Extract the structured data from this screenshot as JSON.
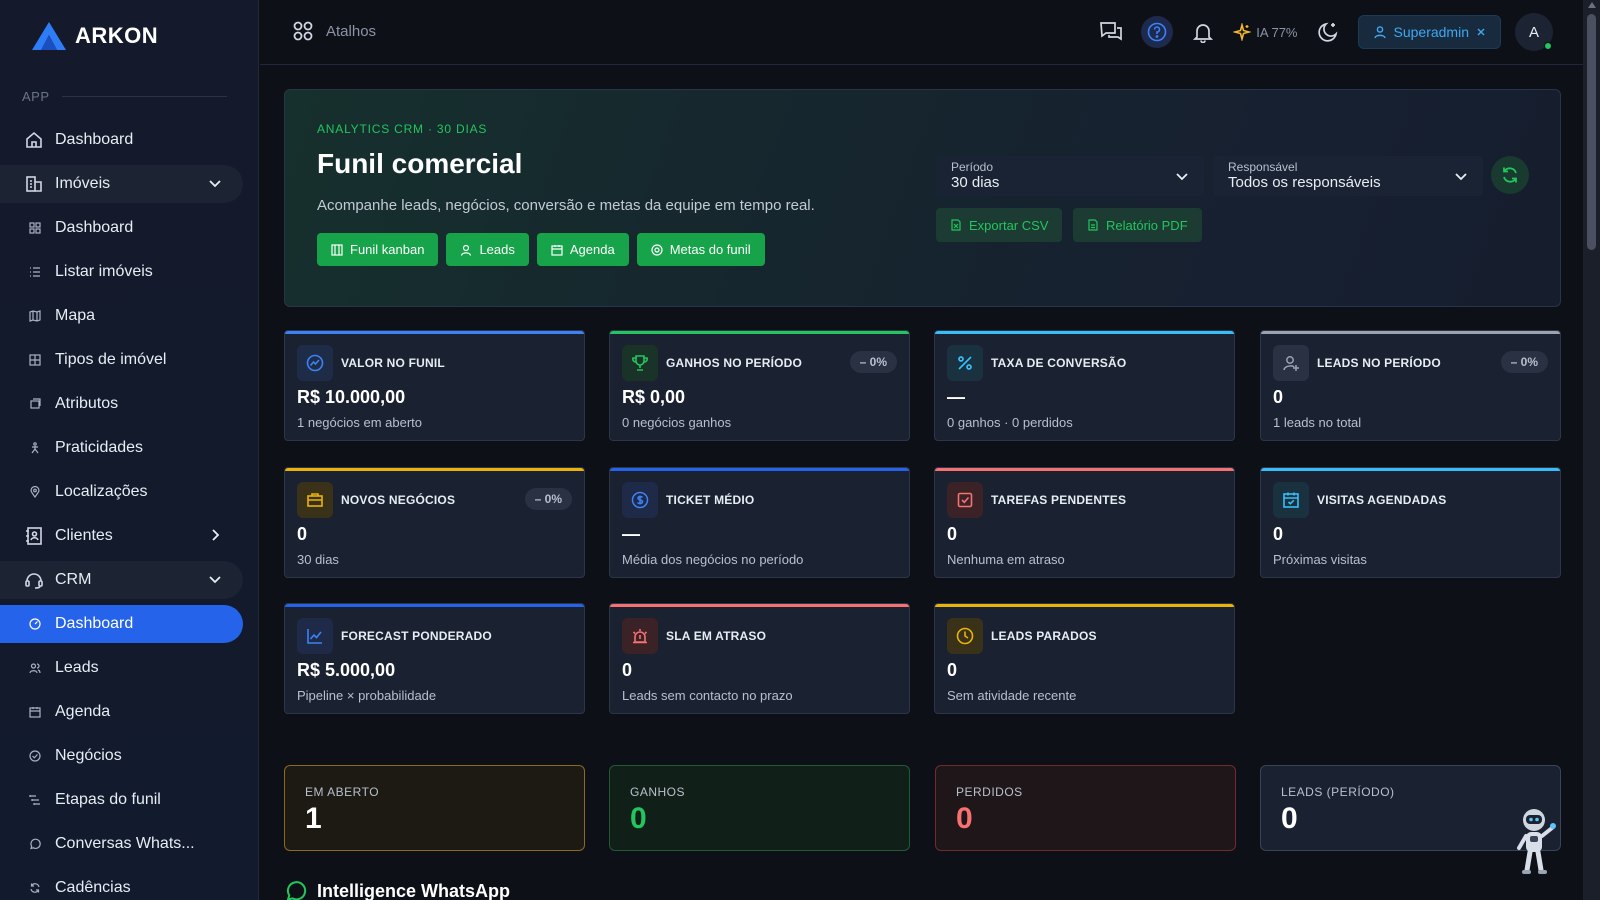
{
  "app": {
    "name": "ARKON"
  },
  "sidebar": {
    "section_label": "APP",
    "items": [
      {
        "label": "Dashboard",
        "icon": "home-icon"
      },
      {
        "label": "Imóveis",
        "icon": "building-icon"
      },
      {
        "label": "Dashboard",
        "icon": "grid-icon"
      },
      {
        "label": "Listar imóveis",
        "icon": "list-icon"
      },
      {
        "label": "Mapa",
        "icon": "map-icon"
      },
      {
        "label": "Tipos de imóvel",
        "icon": "grid-icon"
      },
      {
        "label": "Atributos",
        "icon": "tag-icon"
      },
      {
        "label": "Praticidades",
        "icon": "person-icon"
      },
      {
        "label": "Localizações",
        "icon": "pin-icon"
      },
      {
        "label": "Clientes",
        "icon": "contacts-icon"
      },
      {
        "label": "CRM",
        "icon": "headset-icon"
      },
      {
        "label": "Dashboard",
        "icon": "gauge-icon"
      },
      {
        "label": "Leads",
        "icon": "users-icon"
      },
      {
        "label": "Agenda",
        "icon": "calendar-icon"
      },
      {
        "label": "Negócios",
        "icon": "deal-icon"
      },
      {
        "label": "Etapas do funil",
        "icon": "stages-icon"
      },
      {
        "label": "Conversas Whats...",
        "icon": "whatsapp-icon"
      },
      {
        "label": "Cadências",
        "icon": "cycle-icon"
      }
    ]
  },
  "topbar": {
    "shortcuts_label": "Atalhos",
    "ia_label": "IA 77%",
    "role_label": "Superadmin",
    "avatar_initial": "A"
  },
  "hero": {
    "kicker": "ANALYTICS CRM · 30 DIAS",
    "title": "Funil comercial",
    "description": "Acompanhe leads, negócios, conversão e metas da equipe em tempo real.",
    "buttons": [
      "Funil kanban",
      "Leads",
      "Agenda",
      "Metas do funil"
    ],
    "period": {
      "label": "Período",
      "value": "30 dias"
    },
    "owner": {
      "label": "Responsável",
      "value": "Todos os responsáveis"
    },
    "export_csv": "Exportar CSV",
    "report_pdf": "Relatório PDF"
  },
  "kpis": [
    {
      "title": "VALOR NO FUNIL",
      "value": "R$ 10.000,00",
      "sub": "1 negócios em aberto",
      "badge": "",
      "accent": "#3b82f6",
      "icon": "trend-icon"
    },
    {
      "title": "GANHOS NO PERÍODO",
      "value": "R$ 0,00",
      "sub": "0 negócios ganhos",
      "badge": "– 0%",
      "accent": "#22c55e",
      "icon": "trophy-icon"
    },
    {
      "title": "TAXA DE CONVERSÃO",
      "value": "—",
      "sub": "0 ganhos · 0 perdidos",
      "badge": "",
      "accent": "#38bdf8",
      "icon": "percent-icon"
    },
    {
      "title": "LEADS NO PERÍODO",
      "value": "0",
      "sub": "1 leads no total",
      "badge": "– 0%",
      "accent": "#9ca3af",
      "icon": "user-plus-icon"
    },
    {
      "title": "NOVOS NEGÓCIOS",
      "value": "0",
      "sub": "30 dias",
      "badge": "– 0%",
      "accent": "#eab308",
      "icon": "briefcase-icon"
    },
    {
      "title": "TICKET MÉDIO",
      "value": "—",
      "sub": "Média dos negócios no período",
      "badge": "",
      "accent": "#2563eb",
      "icon": "dollar-icon"
    },
    {
      "title": "TAREFAS PENDENTES",
      "value": "0",
      "sub": "Nenhuma em atraso",
      "badge": "",
      "accent": "#f87171",
      "icon": "checkbox-icon"
    },
    {
      "title": "VISITAS AGENDADAS",
      "value": "0",
      "sub": "Próximas visitas",
      "badge": "",
      "accent": "#38bdf8",
      "icon": "calendar-check-icon"
    },
    {
      "title": "FORECAST PONDERADO",
      "value": "R$ 5.000,00",
      "sub": "Pipeline × probabilidade",
      "badge": "",
      "accent": "#2563eb",
      "icon": "chart-line-icon"
    },
    {
      "title": "SLA EM ATRASO",
      "value": "0",
      "sub": "Leads sem contacto no prazo",
      "badge": "",
      "accent": "#f87171",
      "icon": "alarm-icon"
    },
    {
      "title": "LEADS PARADOS",
      "value": "0",
      "sub": "Sem atividade recente",
      "badge": "",
      "accent": "#eab308",
      "icon": "clock-icon"
    }
  ],
  "summary": [
    {
      "label": "EM ABERTO",
      "value": "1",
      "color": "#ffffff",
      "border": "#8a6a1e",
      "bg": "#1d1a14"
    },
    {
      "label": "GANHOS",
      "value": "0",
      "color": "#22c55e",
      "border": "#1f5a34",
      "bg": "#111f19"
    },
    {
      "label": "PERDIDOS",
      "value": "0",
      "color": "#f87171",
      "border": "#6e2c2c",
      "bg": "#1f1619"
    },
    {
      "label": "LEADS (PERÍODO)",
      "value": "0",
      "color": "#ffffff",
      "border": "#3a4458",
      "bg": "#1a2130"
    }
  ],
  "section_heading": "Intelligence WhatsApp"
}
